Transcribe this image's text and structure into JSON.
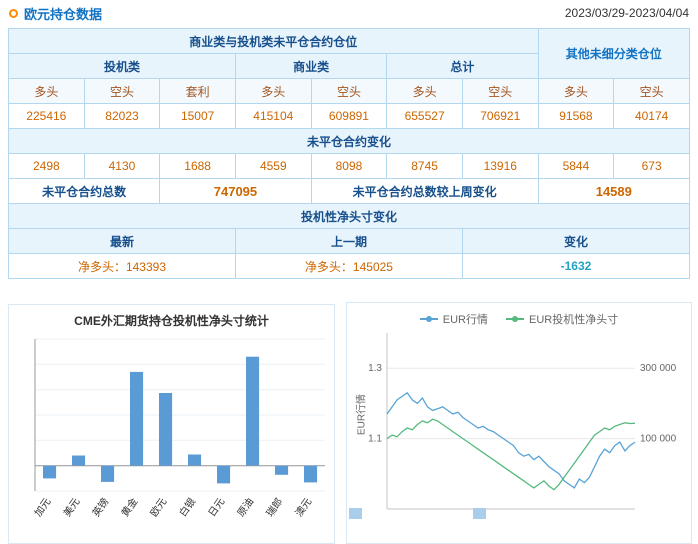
{
  "header": {
    "title": "欧元持仓数据",
    "date_range": "2023/03/29-2023/04/04"
  },
  "colors": {
    "accent_blue": "#1273c4",
    "navy_header_text": "#17508c",
    "data_orange": "#cc6600",
    "negative_teal": "#22a3c4",
    "table_border": "#b3d7ee",
    "header_bg": "#e8f4fc",
    "bar_color": "#5b9bd5",
    "line_blue": "#58a3d6",
    "line_green": "#55b97e",
    "bullet_orange": "#ff8a00"
  },
  "table": {
    "group_main": "商业类与投机类未平仓合约仓位",
    "group_other": "其他未细分类仓位",
    "cat_speculative": "投机类",
    "cat_commercial": "商业类",
    "cat_total": "总计",
    "col_labels": [
      "多头",
      "空头",
      "套利",
      "多头",
      "空头",
      "多头",
      "空头",
      "多头",
      "空头"
    ],
    "open_interest": [
      "225416",
      "82023",
      "15007",
      "415104",
      "609891",
      "655527",
      "706921",
      "91568",
      "40174"
    ],
    "section_oi_change": "未平仓合约变化",
    "oi_change": [
      "2498",
      "4130",
      "1688",
      "4559",
      "8098",
      "8745",
      "13916",
      "5844",
      "673"
    ],
    "total_label": "未平仓合约总数",
    "total_value": "747095",
    "total_change_label": "未平仓合约总数较上周变化",
    "total_change_value": "14589",
    "section_net_change": "投机性净头寸变化",
    "net_headers": [
      "最新",
      "上一期",
      "变化"
    ],
    "net_latest": "净多头：143393",
    "net_previous": "净多头：145025",
    "net_change": "-1632"
  },
  "chart_data": [
    {
      "type": "bar",
      "title": "CME外汇期货持仓投机性净头寸统计",
      "categories": [
        "加元",
        "美元",
        "英镑",
        "黄金",
        "欧元",
        "白银",
        "日元",
        "原油",
        "瑞郎",
        "澳元"
      ],
      "values": [
        -25000,
        20000,
        -32000,
        185000,
        143393,
        22000,
        -35000,
        215000,
        -18000,
        -33000
      ],
      "ylim": [
        -50000,
        250000
      ],
      "bar_color": "#5b9bd5",
      "grid": true,
      "legend_position": "none"
    },
    {
      "type": "line",
      "title": "",
      "ylabel_left": "EUR行情",
      "left_range": [
        0.9,
        1.4
      ],
      "right_range": [
        -100000,
        400000
      ],
      "left_ticks": [
        {
          "value": 1.3,
          "label": "1.3"
        },
        {
          "value": 1.1,
          "label": "1.1"
        }
      ],
      "right_ticks": [
        {
          "value": 300000,
          "label": "300 000"
        },
        {
          "value": 100000,
          "label": "100 000"
        }
      ],
      "legend_position": "top",
      "grid": true,
      "series": [
        {
          "name": "EUR行情",
          "axis": "left",
          "color": "#58a3d6",
          "values": [
            1.17,
            1.19,
            1.21,
            1.22,
            1.23,
            1.21,
            1.2,
            1.215,
            1.19,
            1.18,
            1.185,
            1.19,
            1.18,
            1.17,
            1.175,
            1.16,
            1.15,
            1.14,
            1.13,
            1.135,
            1.125,
            1.12,
            1.11,
            1.1,
            1.09,
            1.08,
            1.06,
            1.05,
            1.055,
            1.04,
            1.05,
            1.035,
            1.02,
            1.01,
            1.0,
            0.98,
            0.97,
            0.96,
            0.985,
            0.975,
            0.99,
            1.02,
            1.05,
            1.07,
            1.06,
            1.08,
            1.09,
            1.065,
            1.08,
            1.09
          ]
        },
        {
          "name": "EUR投机性净头寸",
          "axis": "right",
          "color": "#55b97e",
          "values": [
            100000,
            110000,
            105000,
            120000,
            130000,
            125000,
            140000,
            150000,
            145000,
            155000,
            150000,
            140000,
            130000,
            120000,
            110000,
            100000,
            90000,
            80000,
            70000,
            60000,
            50000,
            40000,
            30000,
            20000,
            10000,
            0,
            -10000,
            -20000,
            -30000,
            -40000,
            -30000,
            -20000,
            -35000,
            -45000,
            -30000,
            -10000,
            10000,
            30000,
            50000,
            70000,
            90000,
            110000,
            120000,
            130000,
            125000,
            135000,
            140000,
            145000,
            143000,
            143393
          ]
        }
      ]
    }
  ]
}
